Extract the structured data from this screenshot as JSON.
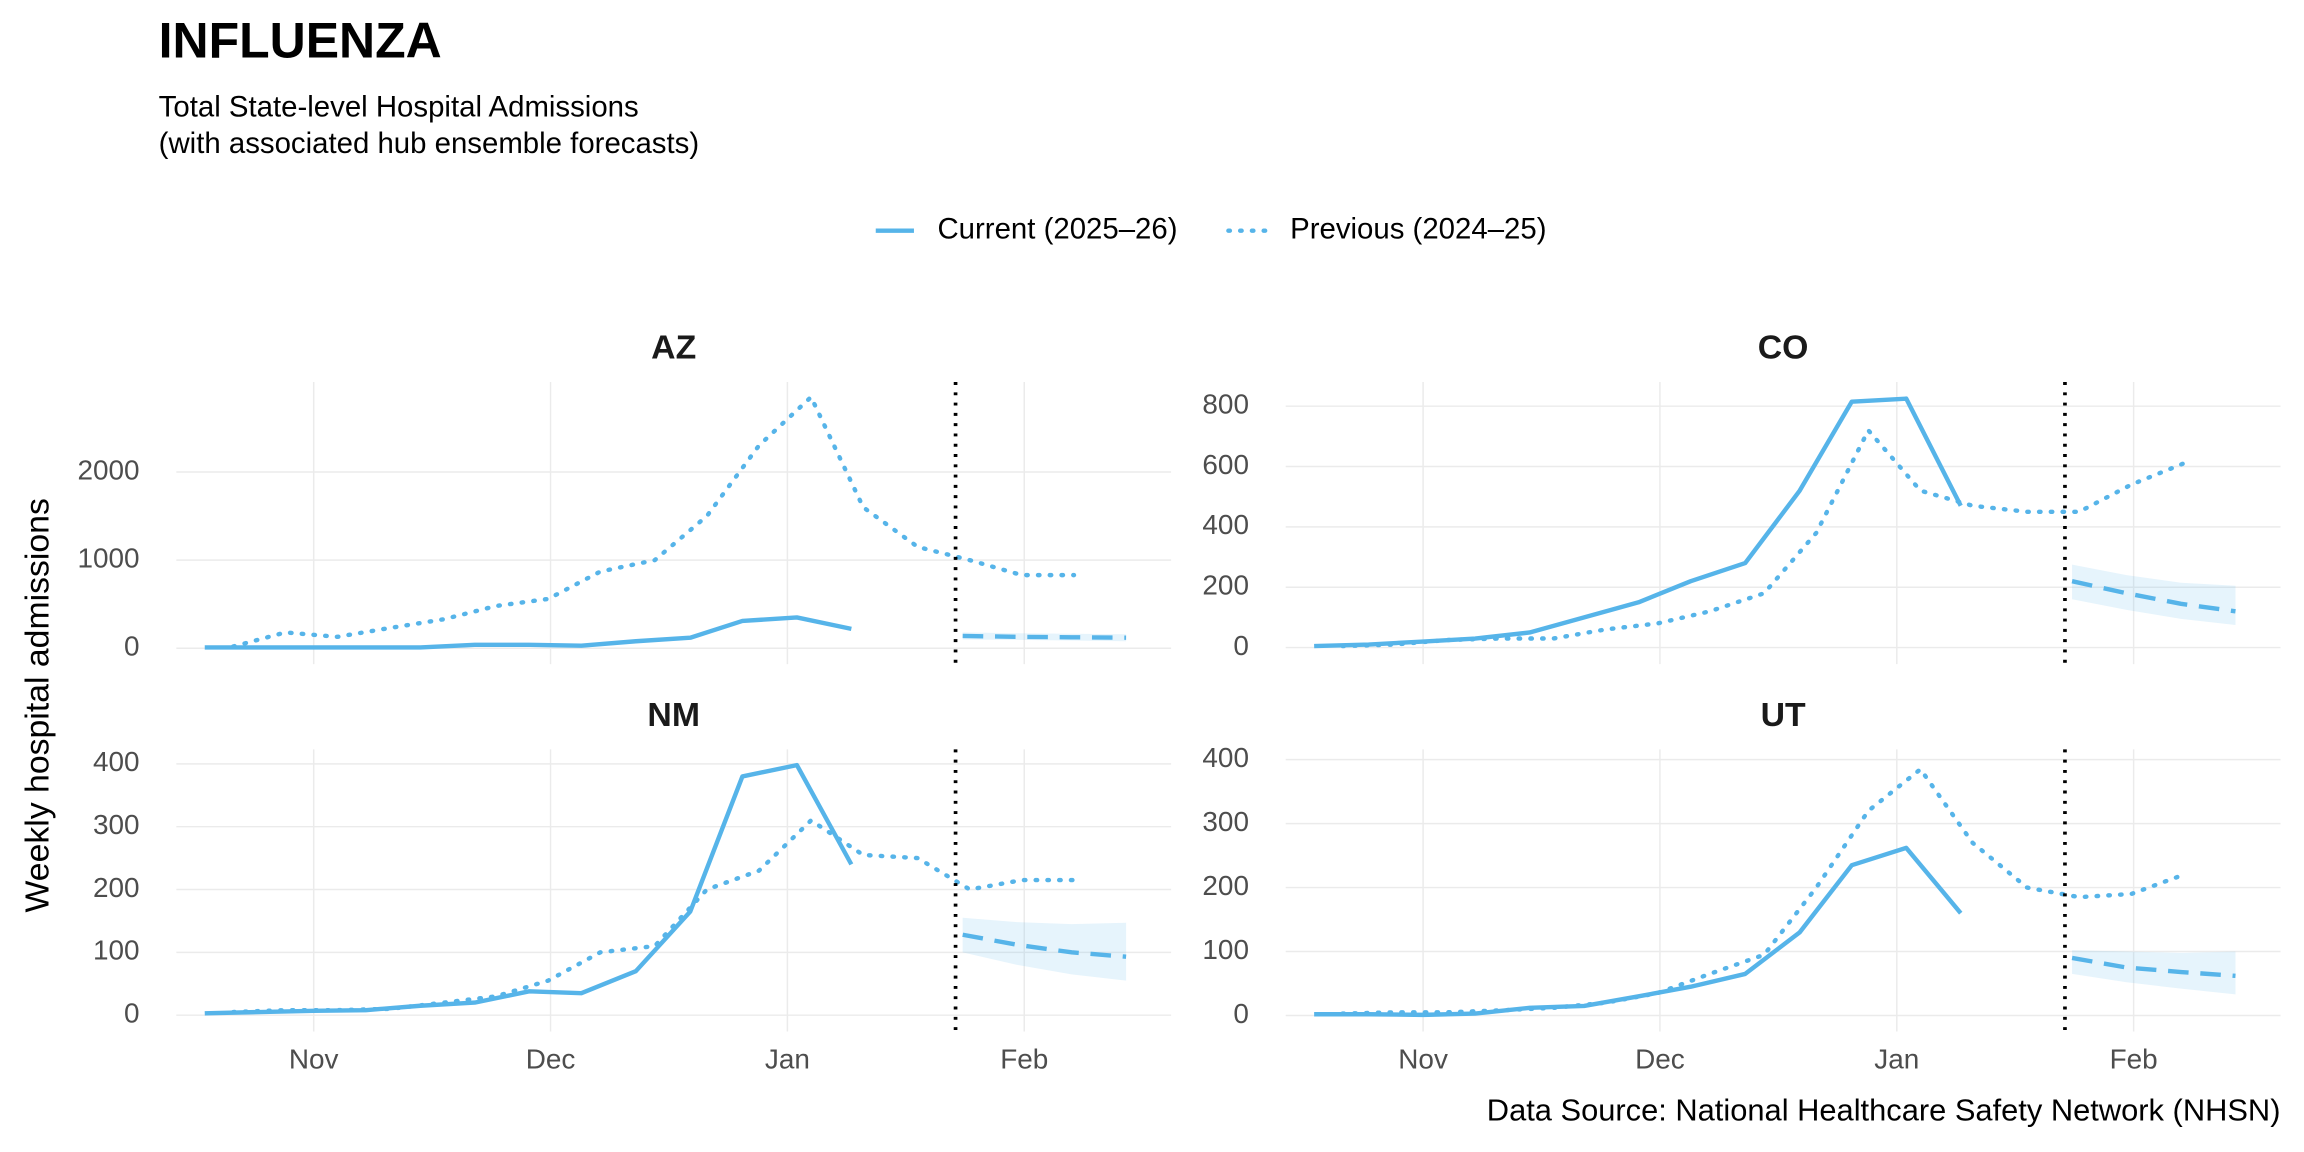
{
  "title": "INFLUENZA",
  "subtitle": [
    "Total State-level Hospital Admissions",
    "(with associated hub ensemble forecasts)"
  ],
  "y_label": "Weekly hospital admissions",
  "caption": "Data Source: National Healthcare Safety Network (NHSN)",
  "chart_data": [
    {
      "type": "line",
      "title": "AZ",
      "xlim": [
        10.42,
        14.62
      ],
      "xticks": [
        {
          "value": 11,
          "label": "Nov"
        },
        {
          "value": 12,
          "label": "Dec"
        },
        {
          "value": 13,
          "label": "Jan"
        },
        {
          "value": 14,
          "label": "Feb"
        }
      ],
      "ylim": [
        -180,
        3020
      ],
      "yticks": [
        0,
        1000,
        2000
      ],
      "grid": true,
      "reference_x": 13.71,
      "series": [
        {
          "name": "Current (2025–26)",
          "color": "#56b4e9",
          "line_style": "solid",
          "x": [
            10.54,
            10.77,
            11.0,
            11.22,
            11.45,
            11.68,
            11.91,
            12.13,
            12.36,
            12.59,
            12.81,
            13.04,
            13.27
          ],
          "values": [
            10,
            10,
            10,
            10,
            10,
            40,
            40,
            30,
            80,
            120,
            310,
            350,
            220
          ]
        },
        {
          "name": "Previous (2024–25)",
          "color": "#56b4e9",
          "line_style": "dotted",
          "x": [
            10.66,
            10.88,
            11.1,
            11.32,
            11.55,
            11.77,
            11.99,
            12.21,
            12.44,
            12.66,
            12.88,
            13.1,
            13.32,
            13.55,
            13.77,
            13.99,
            14.21
          ],
          "values": [
            20,
            180,
            130,
            230,
            330,
            480,
            560,
            870,
            1000,
            1500,
            2300,
            2850,
            1600,
            1150,
            1000,
            830,
            830
          ]
        }
      ],
      "forecast": {
        "color": "#56b4e9",
        "x": [
          13.74,
          13.97,
          14.2,
          14.43
        ],
        "values": [
          140,
          130,
          125,
          120
        ],
        "lower": [
          100,
          95,
          88,
          80
        ],
        "upper": [
          180,
          170,
          165,
          160
        ]
      }
    },
    {
      "type": "line",
      "title": "CO",
      "xlim": [
        10.42,
        14.62
      ],
      "xticks": [
        {
          "value": 11,
          "label": "Nov"
        },
        {
          "value": 12,
          "label": "Dec"
        },
        {
          "value": 13,
          "label": "Jan"
        },
        {
          "value": 14,
          "label": "Feb"
        }
      ],
      "ylim": [
        -55,
        880
      ],
      "yticks": [
        0,
        200,
        400,
        600,
        800
      ],
      "grid": true,
      "reference_x": 13.71,
      "series": [
        {
          "name": "Current (2025–26)",
          "color": "#56b4e9",
          "line_style": "solid",
          "x": [
            10.54,
            10.77,
            11.0,
            11.22,
            11.45,
            11.68,
            11.91,
            12.13,
            12.36,
            12.59,
            12.81,
            13.04,
            13.27
          ],
          "values": [
            5,
            10,
            20,
            30,
            50,
            100,
            150,
            220,
            280,
            520,
            815,
            825,
            470
          ]
        },
        {
          "name": "Previous (2024–25)",
          "color": "#56b4e9",
          "line_style": "dotted",
          "x": [
            10.66,
            10.88,
            11.1,
            11.32,
            11.55,
            11.77,
            11.99,
            12.21,
            12.44,
            12.66,
            12.88,
            13.1,
            13.32,
            13.55,
            13.77,
            13.99,
            14.21
          ],
          "values": [
            5,
            10,
            25,
            30,
            30,
            60,
            80,
            120,
            180,
            380,
            720,
            520,
            470,
            450,
            450,
            540,
            610
          ]
        }
      ],
      "forecast": {
        "color": "#56b4e9",
        "x": [
          13.74,
          13.97,
          14.2,
          14.43
        ],
        "values": [
          220,
          180,
          145,
          120
        ],
        "lower": [
          160,
          125,
          95,
          75
        ],
        "upper": [
          275,
          240,
          215,
          205
        ]
      }
    },
    {
      "type": "line",
      "title": "NM",
      "xlim": [
        10.42,
        14.62
      ],
      "xticks": [
        {
          "value": 11,
          "label": "Nov"
        },
        {
          "value": 12,
          "label": "Dec"
        },
        {
          "value": 13,
          "label": "Jan"
        },
        {
          "value": 14,
          "label": "Feb"
        }
      ],
      "ylim": [
        -26,
        423
      ],
      "yticks": [
        0,
        100,
        200,
        300,
        400
      ],
      "grid": true,
      "reference_x": 13.71,
      "series": [
        {
          "name": "Current (2025–26)",
          "color": "#56b4e9",
          "line_style": "solid",
          "x": [
            10.54,
            10.77,
            11.0,
            11.22,
            11.45,
            11.68,
            11.91,
            12.13,
            12.36,
            12.59,
            12.81,
            13.04,
            13.27
          ],
          "values": [
            3,
            5,
            7,
            8,
            15,
            20,
            38,
            35,
            70,
            165,
            380,
            398,
            240
          ]
        },
        {
          "name": "Previous (2024–25)",
          "color": "#56b4e9",
          "line_style": "dotted",
          "x": [
            10.66,
            10.88,
            11.1,
            11.32,
            11.55,
            11.77,
            11.99,
            12.21,
            12.44,
            12.66,
            12.88,
            13.1,
            13.32,
            13.55,
            13.77,
            13.99,
            14.21
          ],
          "values": [
            5,
            8,
            8,
            10,
            20,
            30,
            55,
            100,
            110,
            200,
            230,
            310,
            255,
            250,
            200,
            215,
            215
          ]
        }
      ],
      "forecast": {
        "color": "#56b4e9",
        "x": [
          13.74,
          13.97,
          14.2,
          14.43
        ],
        "values": [
          128,
          112,
          100,
          93
        ],
        "lower": [
          100,
          80,
          65,
          55
        ],
        "upper": [
          155,
          148,
          145,
          147
        ]
      }
    },
    {
      "type": "line",
      "title": "UT",
      "xlim": [
        10.42,
        14.62
      ],
      "xticks": [
        {
          "value": 11,
          "label": "Nov"
        },
        {
          "value": 12,
          "label": "Dec"
        },
        {
          "value": 13,
          "label": "Jan"
        },
        {
          "value": 14,
          "label": "Feb"
        }
      ],
      "ylim": [
        -25,
        416
      ],
      "yticks": [
        0,
        100,
        200,
        300,
        400
      ],
      "grid": true,
      "reference_x": 13.71,
      "series": [
        {
          "name": "Current (2025–26)",
          "color": "#56b4e9",
          "line_style": "solid",
          "x": [
            10.54,
            10.77,
            11.0,
            11.22,
            11.45,
            11.68,
            11.91,
            12.13,
            12.36,
            12.59,
            12.81,
            13.04,
            13.27
          ],
          "values": [
            2,
            2,
            1,
            3,
            12,
            15,
            30,
            45,
            65,
            130,
            235,
            262,
            160
          ]
        },
        {
          "name": "Previous (2024–25)",
          "color": "#56b4e9",
          "line_style": "dotted",
          "x": [
            10.66,
            10.88,
            11.1,
            11.32,
            11.55,
            11.77,
            11.99,
            12.21,
            12.44,
            12.66,
            12.88,
            13.1,
            13.32,
            13.55,
            13.77,
            13.99,
            14.21
          ],
          "values": [
            3,
            5,
            5,
            8,
            12,
            20,
            35,
            65,
            95,
            200,
            320,
            385,
            270,
            200,
            185,
            190,
            220
          ]
        }
      ],
      "forecast": {
        "color": "#56b4e9",
        "x": [
          13.74,
          13.97,
          14.2,
          14.43
        ],
        "values": [
          90,
          75,
          68,
          62
        ],
        "lower": [
          65,
          52,
          42,
          33
        ],
        "upper": [
          102,
          100,
          98,
          100
        ]
      }
    }
  ]
}
